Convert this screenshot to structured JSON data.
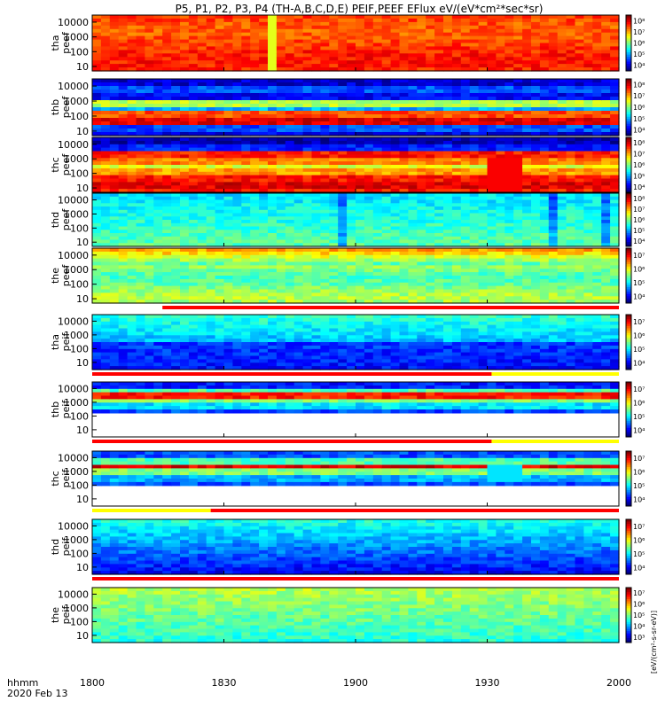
{
  "title": "P5, P1, P2, P3, P4 (TH-A,B,C,D,E) PEIF,PEEF EFlux eV/(eV*cm²*sec*sr)",
  "x_axis": {
    "ticks": [
      "1800",
      "1830",
      "1900",
      "1930",
      "2000"
    ],
    "label_line1": "hhmm",
    "label_line2": "2020 Feb 13"
  },
  "colorbar_unit": "[eV/(cm²-s-sr-eV)]",
  "chart_data": [
    {
      "type": "heatmap",
      "probe": "tha",
      "product": "peef",
      "ylabel": [
        "tha",
        "peef"
      ],
      "y_ticks": [
        "10",
        "100",
        "1000",
        "10000"
      ],
      "ylim": [
        5,
        30000
      ],
      "ylog": true,
      "cbar_ticks": [
        "10⁴",
        "10⁵",
        "10⁶",
        "10⁷",
        "10⁸"
      ],
      "flag_bar": false
    },
    {
      "type": "heatmap",
      "probe": "thb",
      "product": "peef",
      "ylabel": [
        "thb",
        "peef"
      ],
      "y_ticks": [
        "10",
        "100",
        "1000",
        "10000"
      ],
      "ylim": [
        5,
        30000
      ],
      "ylog": true,
      "cbar_ticks": [
        "10⁴",
        "10⁵",
        "10⁶",
        "10⁷",
        "10⁸"
      ],
      "flag_bar": false
    },
    {
      "type": "heatmap",
      "probe": "thc",
      "product": "peef",
      "ylabel": [
        "thc",
        "peef"
      ],
      "y_ticks": [
        "10",
        "100",
        "1000",
        "10000"
      ],
      "ylim": [
        5,
        30000
      ],
      "ylog": true,
      "cbar_ticks": [
        "10⁴",
        "10⁵",
        "10⁶",
        "10⁷",
        "10⁸"
      ],
      "flag_bar": false
    },
    {
      "type": "heatmap",
      "probe": "thd",
      "product": "peef",
      "ylabel": [
        "thd",
        "peef"
      ],
      "y_ticks": [
        "10",
        "100",
        "1000",
        "10000"
      ],
      "ylim": [
        5,
        30000
      ],
      "ylog": true,
      "cbar_ticks": [
        "10⁴",
        "10⁵",
        "10⁶",
        "10⁷",
        "10⁸"
      ],
      "flag_bar": false
    },
    {
      "type": "heatmap",
      "probe": "the",
      "product": "peef",
      "ylabel": [
        "the",
        "peef"
      ],
      "y_ticks": [
        "10",
        "100",
        "1000",
        "10000"
      ],
      "ylim": [
        5,
        30000
      ],
      "ylog": true,
      "cbar_ticks": [
        "10⁴",
        "10⁵",
        "10⁶",
        "10⁷"
      ],
      "flag_bar": true
    },
    {
      "type": "heatmap",
      "probe": "tha",
      "product": "peif",
      "ylabel": [
        "tha",
        "peif"
      ],
      "y_ticks": [
        "10",
        "100",
        "1000",
        "10000"
      ],
      "ylim": [
        3,
        30000
      ],
      "ylog": true,
      "cbar_ticks": [
        "10⁴",
        "10⁵",
        "10⁶",
        "10⁷"
      ],
      "flag_bar": true
    },
    {
      "type": "heatmap",
      "probe": "thb",
      "product": "peif",
      "ylabel": [
        "thb",
        "peif"
      ],
      "y_ticks": [
        "10",
        "100",
        "1000",
        "10000"
      ],
      "ylim": [
        3,
        30000
      ],
      "ylog": true,
      "cbar_ticks": [
        "10⁴",
        "10⁵",
        "10⁶",
        "10⁷"
      ],
      "flag_bar": true
    },
    {
      "type": "heatmap",
      "probe": "thc",
      "product": "peif",
      "ylabel": [
        "thc",
        "peif"
      ],
      "y_ticks": [
        "10",
        "100",
        "1000",
        "10000"
      ],
      "ylim": [
        3,
        30000
      ],
      "ylog": true,
      "cbar_ticks": [
        "10⁴",
        "10⁵",
        "10⁶",
        "10⁷"
      ],
      "flag_bar": true
    },
    {
      "type": "heatmap",
      "probe": "thd",
      "product": "peif",
      "ylabel": [
        "thd",
        "peif"
      ],
      "y_ticks": [
        "10",
        "100",
        "1000",
        "10000"
      ],
      "ylim": [
        3,
        30000
      ],
      "ylog": true,
      "cbar_ticks": [
        "10⁴",
        "10⁵",
        "10⁶",
        "10⁷"
      ],
      "flag_bar": true
    },
    {
      "type": "heatmap",
      "probe": "the",
      "product": "peif",
      "ylabel": [
        "the",
        "peif"
      ],
      "y_ticks": [
        "10",
        "100",
        "1000",
        "10000"
      ],
      "ylim": [
        3,
        30000
      ],
      "ylog": true,
      "cbar_ticks": [
        "10³",
        "10⁴",
        "10⁵",
        "10⁶",
        "10⁷"
      ],
      "flag_bar": false
    }
  ],
  "colors": {
    "jet": [
      "#00007f",
      "#0000ff",
      "#007fff",
      "#00ffff",
      "#7fff7f",
      "#ffff00",
      "#ff7f00",
      "#ff0000",
      "#7f0000"
    ],
    "flag_red": "#ff0000",
    "flag_yellow": "#ffff00"
  }
}
